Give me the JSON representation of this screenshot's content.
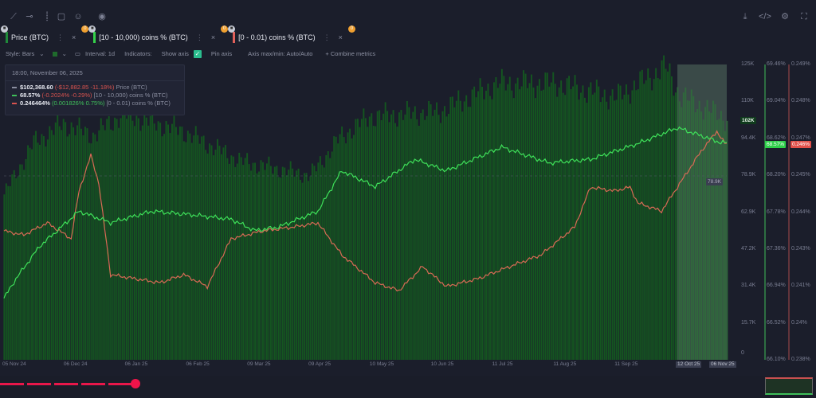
{
  "toolbar": {
    "tools": [
      "line-tool",
      "horizontal-line-tool",
      "vertical-line-tool",
      "note-tool",
      "emoji-tool",
      "visibility-tool"
    ],
    "right": [
      "download",
      "embed-code",
      "settings"
    ]
  },
  "tabs": [
    {
      "label": "Price (BTC)",
      "color": "#1f8a3a",
      "badge": "0"
    },
    {
      "label": "[10 - 10,000) coins % (BTC)",
      "color": "#35d24a",
      "badge": "0"
    },
    {
      "label": "[0 - 0.01) coins % (BTC)",
      "color": "#e0605a",
      "badge": "0"
    }
  ],
  "controls": {
    "style": "Style: Bars",
    "interval": "Interval: 1d",
    "indicators": "Indicators:",
    "show_axis": "Show axis",
    "show_axis_checked": true,
    "pin_axis": "Pin axis",
    "axis_maxmin": "Axis max/min: Auto/Auto",
    "combine": "+ Combine metrics"
  },
  "legend": {
    "date": "18:00, November 06, 2025",
    "rows": [
      {
        "value": "$102,368.60",
        "change": "(-$12,882.85",
        "pct": "-11.18%)",
        "name": "Price (BTC)",
        "change_color": "#d9534f"
      },
      {
        "value": "68.57%",
        "change": "(-0.2024%",
        "pct": "-0.29%)",
        "name": "[10 - 10,000) coins % (BTC)",
        "change_color": "#d9534f"
      },
      {
        "value": "0.246464%",
        "change": "(0.001826%",
        "pct": "0.75%)",
        "name": "[0 - 0.01) coins % (BTC)",
        "change_color": "#3fbf5a"
      }
    ]
  },
  "chart_data": {
    "type": "bar+line",
    "x_ticks": [
      "05 Nov 24",
      "06 Dec 24",
      "06 Jan 25",
      "06 Feb 25",
      "09 Mar 25",
      "09 Apr 25",
      "10 May 25",
      "10 Jun 25",
      "11 Jul 25",
      "11 Aug 25",
      "11 Sep 25",
      "12 Oct 25",
      "06 Nov 25"
    ],
    "x_tick_days": [
      0,
      31,
      62,
      93,
      124,
      155,
      186,
      217,
      248,
      279,
      310,
      341,
      366
    ],
    "x_range_days": [
      0,
      366
    ],
    "price_axis": {
      "ticks": [
        "125K",
        "110K",
        "94.4K",
        "78.9K",
        "62.9K",
        "47.2K",
        "31.4K",
        "15.7K",
        "0"
      ],
      "range": [
        0,
        125000
      ],
      "current": "102K",
      "crosshair": "78.9K"
    },
    "green_axis": {
      "ticks": [
        "69.46%",
        "69.04%",
        "68.62%",
        "68.20%",
        "67.78%",
        "67.36%",
        "66.94%",
        "66.52%",
        "66.10%"
      ],
      "range": [
        66.1,
        69.46
      ],
      "current": "68.57%"
    },
    "red_axis": {
      "ticks": [
        "0.249%",
        "0.248%",
        "0.247%",
        "0.245%",
        "0.244%",
        "0.243%",
        "0.241%",
        "0.24%",
        "0.238%"
      ],
      "range": [
        0.238,
        0.249
      ],
      "current": "0.246%"
    },
    "price_bars_k": [
      [
        0,
        70
      ],
      [
        15,
        92
      ],
      [
        30,
        100
      ],
      [
        45,
        95
      ],
      [
        60,
        104
      ],
      [
        90,
        97
      ],
      [
        120,
        84
      ],
      [
        155,
        78
      ],
      [
        170,
        94
      ],
      [
        185,
        103
      ],
      [
        220,
        105
      ],
      [
        250,
        117
      ],
      [
        280,
        117
      ],
      [
        310,
        111
      ],
      [
        335,
        124
      ],
      [
        342,
        112
      ],
      [
        366,
        102
      ]
    ],
    "series_green": [
      [
        0,
        66.8
      ],
      [
        6,
        67.02
      ],
      [
        18,
        67.39
      ],
      [
        38,
        67.79
      ],
      [
        54,
        67.66
      ],
      [
        75,
        67.79
      ],
      [
        95,
        67.75
      ],
      [
        115,
        67.7
      ],
      [
        127,
        67.57
      ],
      [
        139,
        67.61
      ],
      [
        159,
        67.79
      ],
      [
        171,
        68.25
      ],
      [
        188,
        68.07
      ],
      [
        208,
        68.38
      ],
      [
        224,
        68.25
      ],
      [
        252,
        68.52
      ],
      [
        276,
        68.34
      ],
      [
        297,
        68.38
      ],
      [
        321,
        68.56
      ],
      [
        341,
        68.74
      ],
      [
        353,
        68.65
      ],
      [
        363,
        68.57
      ]
    ],
    "series_red": [
      [
        0,
        0.2428
      ],
      [
        10,
        0.24265
      ],
      [
        22,
        0.2431
      ],
      [
        34,
        0.24251
      ],
      [
        38,
        0.24429
      ],
      [
        44,
        0.24562
      ],
      [
        48,
        0.24458
      ],
      [
        54,
        0.24117
      ],
      [
        79,
        0.24087
      ],
      [
        91,
        0.24117
      ],
      [
        103,
        0.24073
      ],
      [
        115,
        0.24251
      ],
      [
        131,
        0.2428
      ],
      [
        147,
        0.24295
      ],
      [
        159,
        0.2431
      ],
      [
        171,
        0.24191
      ],
      [
        188,
        0.24087
      ],
      [
        200,
        0.24058
      ],
      [
        212,
        0.24147
      ],
      [
        224,
        0.24073
      ],
      [
        240,
        0.24102
      ],
      [
        256,
        0.24147
      ],
      [
        272,
        0.24191
      ],
      [
        289,
        0.24295
      ],
      [
        297,
        0.24443
      ],
      [
        309,
        0.24429
      ],
      [
        317,
        0.24443
      ],
      [
        321,
        0.24384
      ],
      [
        333,
        0.24354
      ],
      [
        341,
        0.24443
      ],
      [
        353,
        0.24577
      ],
      [
        361,
        0.24651
      ],
      [
        365,
        0.24606
      ]
    ],
    "highlight_days": [
      341,
      366
    ]
  }
}
